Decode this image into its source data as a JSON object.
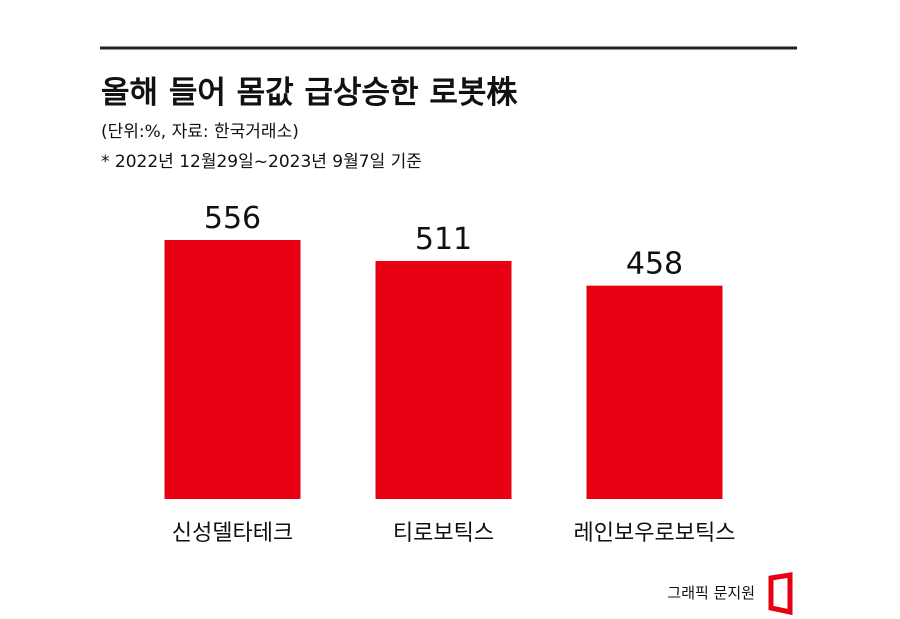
{
  "chart_data": {
    "type": "bar",
    "title": "올해 들어 몸값 급상승한 로봇株",
    "subtitle": "(단위:%, 자료: 한국거래소)",
    "note": "* 2022년 12월29일~2023년 9월7일 기준",
    "categories": [
      "신성델타테크",
      "티로보틱스",
      "레인보우로보틱스"
    ],
    "values": [
      556,
      511,
      458
    ],
    "color": "#e60012",
    "credit": "그래픽 문지원"
  }
}
